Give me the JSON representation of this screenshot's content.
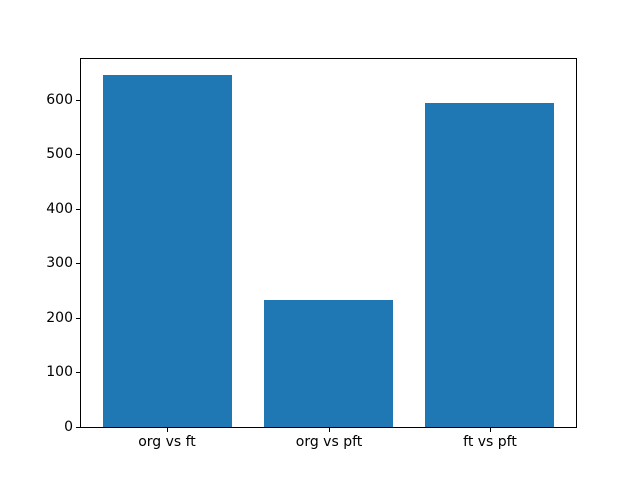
{
  "chart_data": {
    "type": "bar",
    "title": "",
    "xlabel": "",
    "ylabel": "",
    "categories": [
      "org vs ft",
      "org vs pft",
      "ft vs pft"
    ],
    "values": [
      645,
      233,
      595
    ],
    "yticks": [
      0,
      100,
      200,
      300,
      400,
      500,
      600
    ],
    "ylim": [
      0,
      677
    ],
    "xlim": [
      -0.54,
      2.54
    ],
    "bar_positions": [
      0,
      1,
      2
    ],
    "bar_width": 0.8,
    "bar_color": "#1f77b4",
    "axis_color": "#000000",
    "text_color": "#000000",
    "background_color": "#ffffff",
    "grid": false,
    "legend": null
  }
}
